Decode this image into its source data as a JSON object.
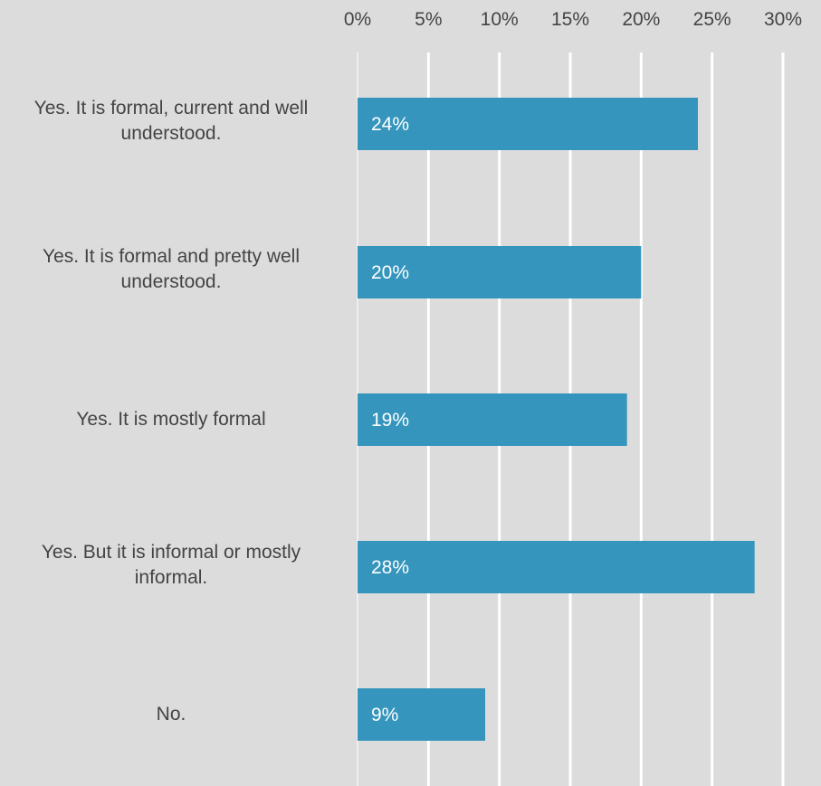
{
  "colors": {
    "background": "#dcdcdc",
    "bar": "#3595bd",
    "gridline": "#ffffff",
    "tick_text": "#444444",
    "bar_label_text": "#ffffff"
  },
  "chart_data": {
    "type": "bar",
    "orientation": "horizontal",
    "x_axis_position": "top",
    "grid": true,
    "xlim": [
      0,
      30
    ],
    "xticks": [
      0,
      5,
      10,
      15,
      20,
      25,
      30
    ],
    "xtick_labels": [
      "0%",
      "5%",
      "10%",
      "15%",
      "20%",
      "25%",
      "30%"
    ],
    "categories": [
      "Yes. It is formal, current and well understood.",
      "Yes. It is formal and pretty well understood.",
      "Yes. It is mostly formal",
      "Yes. But it is informal or mostly informal.",
      "No."
    ],
    "values": [
      24,
      20,
      19,
      28,
      9
    ],
    "data_labels": [
      "24%",
      "20%",
      "19%",
      "28%",
      "9%"
    ]
  }
}
